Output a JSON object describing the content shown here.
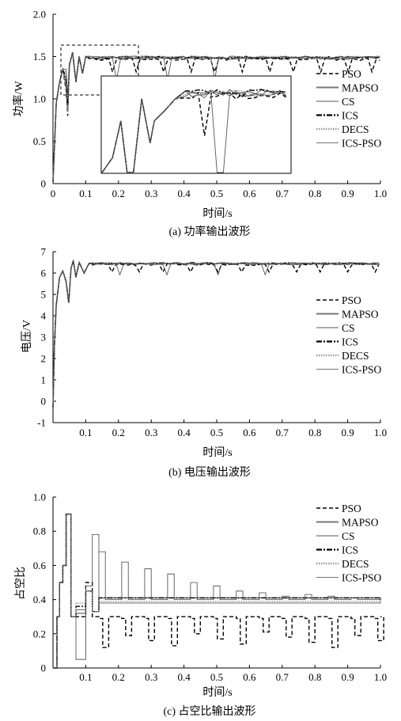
{
  "chart_data": [
    {
      "type": "line",
      "ylabel": "功率/W",
      "xlabel": "时间/s",
      "caption": "(a) 功率输出波形",
      "xlim": [
        0,
        1.0
      ],
      "ylim": [
        0,
        2.0
      ],
      "xticks": [
        "0",
        "0.1",
        "0.2",
        "0.3",
        "0.4",
        "0.5",
        "0.6",
        "0.7",
        "0.8",
        "0.9",
        "1.0"
      ],
      "yticks": [
        "0",
        "0.5",
        "1.0",
        "1.5",
        "2.0"
      ],
      "legend_position": "right, inside",
      "has_zoom_inset": true,
      "series": [
        {
          "name": "PSO",
          "steady_value": 1.47
        },
        {
          "name": "MAPSO",
          "steady_value": 1.49
        },
        {
          "name": "CS",
          "steady_value": 1.48
        },
        {
          "name": "ICS",
          "steady_value": 1.49
        },
        {
          "name": "DECS",
          "steady_value": 1.49
        },
        {
          "name": "ICS-PSO",
          "steady_value": 1.49
        }
      ]
    },
    {
      "type": "line",
      "ylabel": "电压/V",
      "xlabel": "时间/s",
      "caption": "(b) 电压输出波形",
      "xlim": [
        0,
        1.0
      ],
      "ylim": [
        -1,
        7
      ],
      "xticks": [
        "0.1",
        "0.2",
        "0.3",
        "0.4",
        "0.5",
        "0.6",
        "0.7",
        "0.8",
        "0.9",
        "1.0"
      ],
      "yticks": [
        "-1",
        "0",
        "1",
        "2",
        "3",
        "4",
        "5",
        "6",
        "7"
      ],
      "legend_position": "right, inside",
      "series": [
        {
          "name": "PSO",
          "steady_value": 6.4
        },
        {
          "name": "MAPSO",
          "steady_value": 6.45
        },
        {
          "name": "CS",
          "steady_value": 6.42
        },
        {
          "name": "ICS",
          "steady_value": 6.45
        },
        {
          "name": "DECS",
          "steady_value": 6.45
        },
        {
          "name": "ICS-PSO",
          "steady_value": 6.45
        }
      ]
    },
    {
      "type": "line",
      "ylabel": "占空比",
      "xlabel": "时间/s",
      "caption": "(c) 占空比输出波形",
      "xlim": [
        0,
        1.0
      ],
      "ylim": [
        0,
        1.0
      ],
      "xticks": [
        "0.1",
        "0.2",
        "0.3",
        "0.4",
        "0.5",
        "0.6",
        "0.7",
        "0.8",
        "0.9",
        "1.0"
      ],
      "yticks": [
        "0",
        "0.2",
        "0.4",
        "0.6",
        "0.8",
        "1.0"
      ],
      "legend_position": "right, inside",
      "series": [
        {
          "name": "PSO",
          "steady_value": 0.3,
          "dips_to": 0.1
        },
        {
          "name": "MAPSO",
          "steady_value": 0.4
        },
        {
          "name": "CS",
          "steady_value": 0.39
        },
        {
          "name": "ICS",
          "steady_value": 0.4
        },
        {
          "name": "DECS",
          "steady_value": 0.4
        },
        {
          "name": "ICS-PSO",
          "steady_value": 0.4,
          "peaks_to": 0.78
        }
      ]
    }
  ]
}
